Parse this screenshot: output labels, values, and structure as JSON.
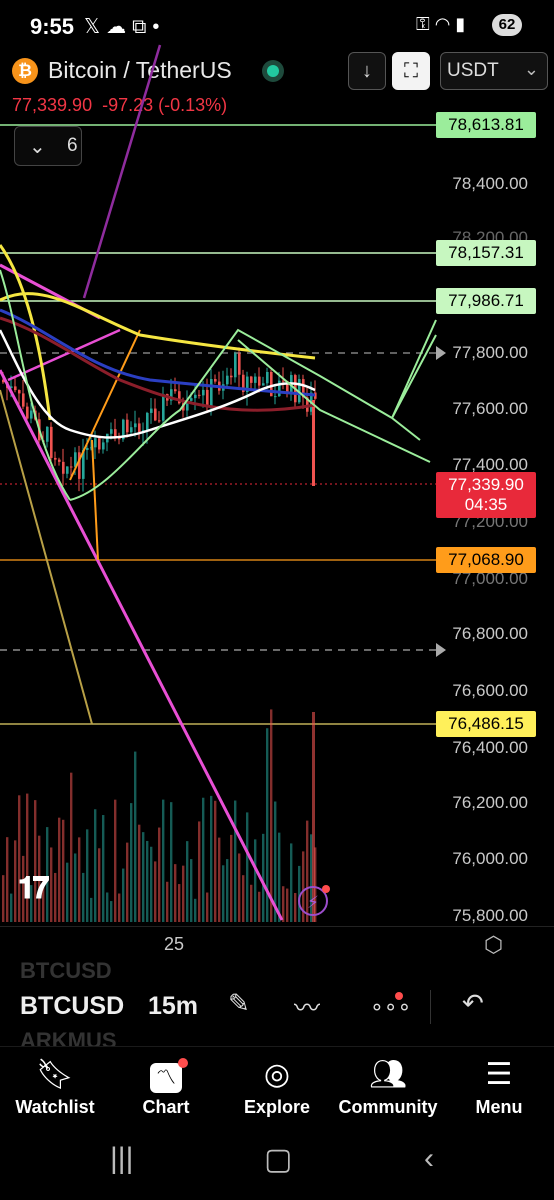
{
  "status_bar": {
    "time": "9:55",
    "left_icons": [
      "x-icon",
      "cloud-icon",
      "screenshot-icon",
      "dot-icon"
    ],
    "right_icons": [
      "key-icon",
      "wifi-icon",
      "signal-icon"
    ],
    "battery": "62"
  },
  "header": {
    "pair": "Bitcoin / TetherUS",
    "currency": "USDT",
    "quote_price": "77,339.90",
    "quote_change": "-97.23",
    "quote_percent": "(-0.13%)",
    "indicators_count": "6"
  },
  "price_scale": {
    "ticks": [
      "78,400.00",
      "78,200.00",
      "77,800.00",
      "77,600.00",
      "77,400.00",
      "77,200.00",
      "77,000.00",
      "76,800.00",
      "76,600.00",
      "76,400.00",
      "76,200.00",
      "76,000.00",
      "75,800.00"
    ],
    "tags": {
      "top_green": "78,613.81",
      "green_2": "78,157.31",
      "green_3": "77,986.71",
      "current": "77,339.90",
      "countdown": "04:35",
      "orange": "77,068.90",
      "yellow": "76,486.15"
    }
  },
  "time_axis": {
    "label": "25"
  },
  "toolbar": {
    "symbol": "BTCUSD",
    "symbol_prev": "BTCUSD",
    "symbol_next": "ARKMUS",
    "timeframe": "15m"
  },
  "nav": {
    "items": [
      {
        "label": "Watchlist",
        "icon": "bookmark-icon"
      },
      {
        "label": "Chart",
        "icon": "chart-icon"
      },
      {
        "label": "Explore",
        "icon": "compass-icon"
      },
      {
        "label": "Community",
        "icon": "people-icon"
      },
      {
        "label": "Menu",
        "icon": "menu-icon"
      }
    ]
  },
  "colors": {
    "up": "#26a69a",
    "down": "#ef5350",
    "accent_green": "#9bed9b",
    "accent_orange": "#ff9c1a",
    "accent_yellow": "#fff05a",
    "accent_red": "#e8293a"
  }
}
